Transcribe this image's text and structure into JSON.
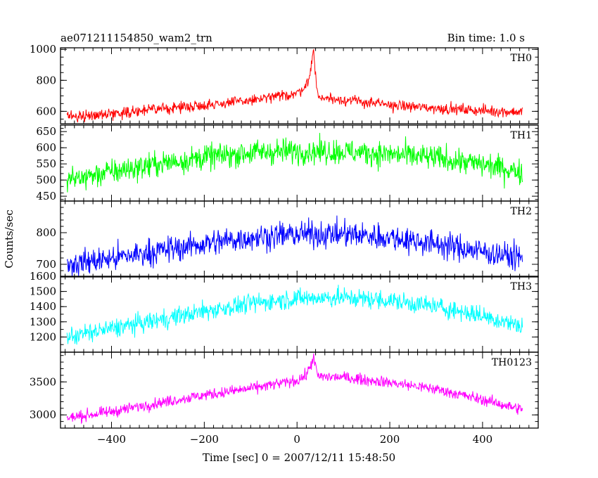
{
  "header": {
    "title": "ae071211154850_wam2_trn",
    "bin_time": "Bin time: 1.0 s"
  },
  "chart_data": {
    "type": "line",
    "xlabel": "Time [sec] 0 = 2007/12/11 15:48:50",
    "ylabel": "Counts/sec",
    "xlim": [
      -510,
      520
    ],
    "xticks": [
      -400,
      -200,
      0,
      200,
      400
    ],
    "bin_time_s": 1.0,
    "x_range": [
      -496,
      486
    ],
    "panels": [
      {
        "name": "TH0",
        "color": "#ff0000",
        "ylim": [
          520,
          1010
        ],
        "yticks": [
          600,
          800,
          1000
        ],
        "x": [
          -496,
          -400,
          -300,
          -200,
          -100,
          0,
          20,
          30,
          35,
          45,
          100,
          200,
          300,
          400,
          486
        ],
        "y": [
          565,
          585,
          615,
          640,
          670,
          715,
          770,
          860,
          1005,
          690,
          675,
          640,
          620,
          605,
          595
        ],
        "noise": 25
      },
      {
        "name": "TH1",
        "color": "#00ff00",
        "ylim": [
          435,
          670
        ],
        "yticks": [
          450,
          500,
          550,
          600,
          650
        ],
        "x": [
          -496,
          -400,
          -300,
          -200,
          -100,
          0,
          100,
          200,
          300,
          400,
          486
        ],
        "y": [
          500,
          525,
          550,
          570,
          585,
          590,
          588,
          580,
          568,
          548,
          525
        ],
        "noise": 28
      },
      {
        "name": "TH2",
        "color": "#0000ff",
        "ylim": [
          660,
          900
        ],
        "yticks": [
          700,
          800
        ],
        "x": [
          -496,
          -400,
          -300,
          -200,
          -100,
          0,
          100,
          200,
          300,
          400,
          486
        ],
        "y": [
          700,
          718,
          742,
          765,
          785,
          795,
          795,
          785,
          765,
          740,
          720
        ],
        "noise": 30
      },
      {
        "name": "TH3",
        "color": "#00ffff",
        "ylim": [
          1100,
          1600
        ],
        "yticks": [
          1200,
          1300,
          1400,
          1500,
          1600
        ],
        "x": [
          -496,
          -400,
          -300,
          -200,
          -100,
          0,
          100,
          200,
          300,
          400,
          486
        ],
        "y": [
          1200,
          1255,
          1310,
          1370,
          1420,
          1455,
          1460,
          1440,
          1400,
          1340,
          1270
        ],
        "noise": 45
      },
      {
        "name": "TH0123",
        "color": "#ff00ff",
        "ylim": [
          2800,
          3950
        ],
        "yticks": [
          3000,
          3500
        ],
        "x": [
          -496,
          -400,
          -300,
          -200,
          -100,
          0,
          20,
          30,
          35,
          45,
          100,
          200,
          300,
          400,
          486
        ],
        "y": [
          2950,
          3050,
          3180,
          3300,
          3400,
          3520,
          3600,
          3760,
          3880,
          3580,
          3570,
          3490,
          3390,
          3230,
          3080
        ],
        "noise": 60
      }
    ]
  }
}
